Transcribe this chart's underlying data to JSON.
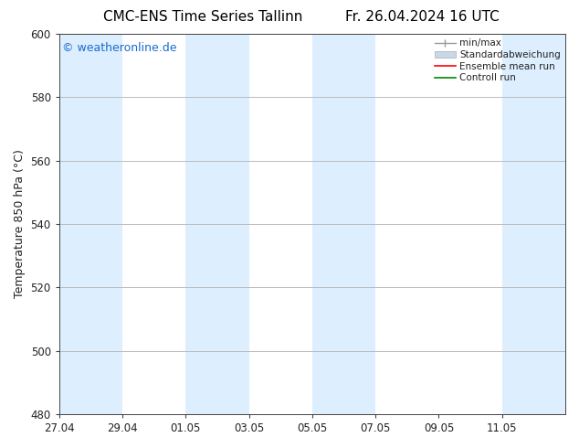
{
  "title_left": "CMC-ENS Time Series Tallinn",
  "title_right": "Fr. 26.04.2024 16 UTC",
  "ylabel": "Temperature 850 hPa (°C)",
  "watermark": "© weatheronline.de",
  "watermark_color": "#1a6bcc",
  "ylim": [
    480,
    600
  ],
  "yticks": [
    480,
    500,
    520,
    540,
    560,
    580,
    600
  ],
  "x_tick_labels": [
    "27.04",
    "29.04",
    "01.05",
    "03.05",
    "05.05",
    "07.05",
    "09.05",
    "11.05"
  ],
  "x_tick_positions": [
    0,
    2,
    4,
    6,
    8,
    10,
    12,
    14
  ],
  "shaded_bands": [
    {
      "start_day": 0,
      "end_day": 2
    },
    {
      "start_day": 4,
      "end_day": 6
    },
    {
      "start_day": 8,
      "end_day": 10
    },
    {
      "start_day": 14,
      "end_day": 16
    }
  ],
  "band_color": "#ddeeff",
  "bg_color": "#ffffff",
  "grid_color": "#bbbbbb",
  "legend_labels": [
    "min/max",
    "Standardabweichung",
    "Ensemble mean run",
    "Controll run"
  ],
  "legend_color_std": "#c8d8e8",
  "legend_color_mean": "#ff0000",
  "legend_color_control": "#008800",
  "legend_color_minmax": "#999999",
  "spine_color": "#444444",
  "tick_color": "#222222",
  "title_fontsize": 11,
  "label_fontsize": 9,
  "tick_fontsize": 8.5,
  "watermark_fontsize": 9,
  "legend_fontsize": 7.5,
  "total_days": 16
}
